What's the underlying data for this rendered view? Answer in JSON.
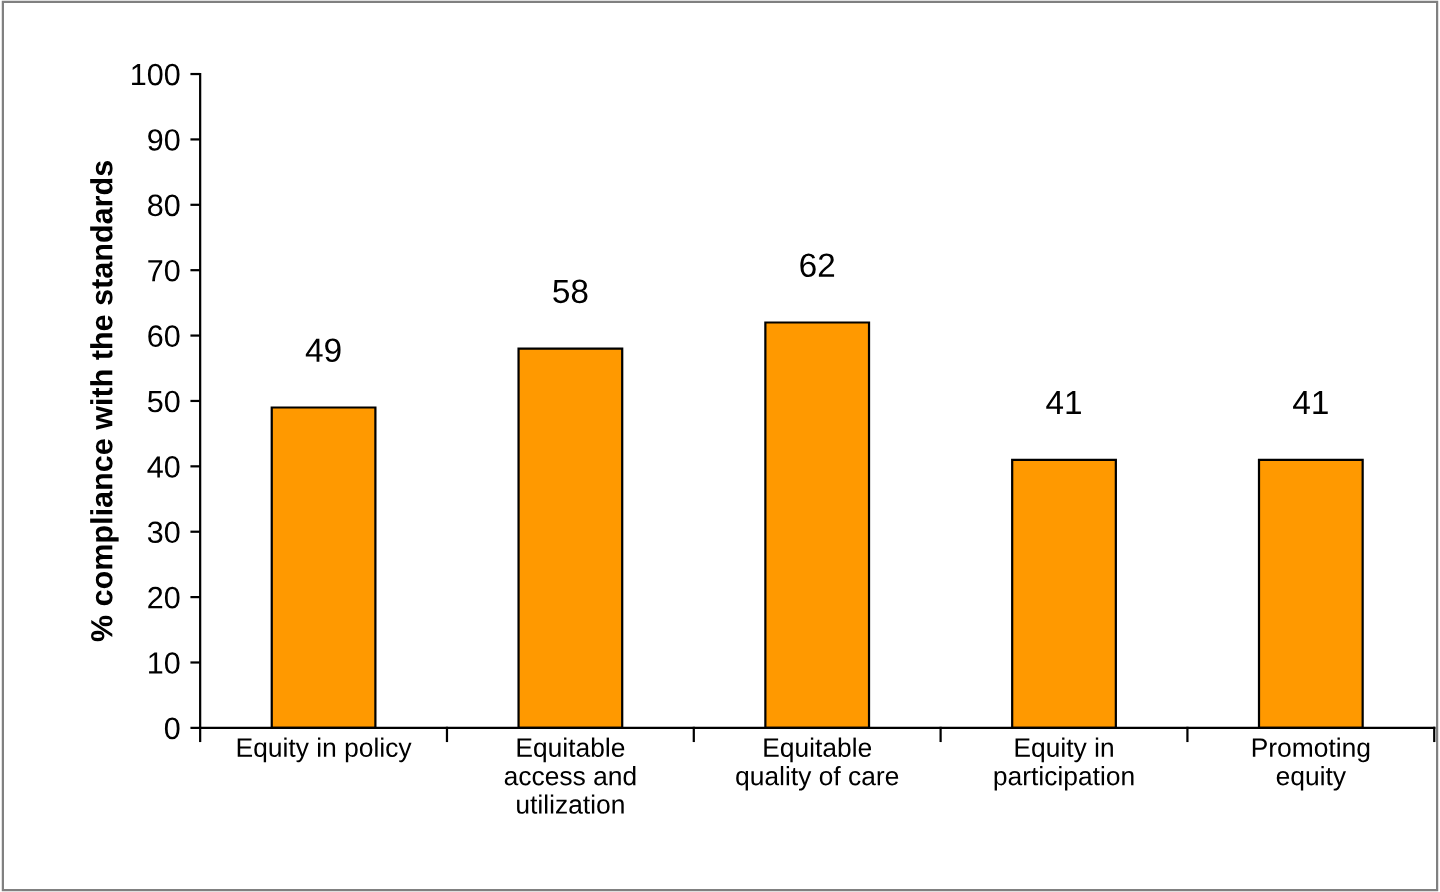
{
  "chart_data": {
    "type": "bar",
    "ylabel": "% compliance with the standards",
    "categories": [
      "Equity in policy",
      "Equitable\naccess and\nutilization",
      "Equitable\nquality of care",
      "Equity in\nparticipation",
      "Promoting\nequity"
    ],
    "values": [
      49,
      58,
      62,
      41,
      41
    ],
    "color": "#ff9900",
    "ylim": [
      0,
      100
    ],
    "yticks": [
      0,
      10,
      20,
      30,
      40,
      50,
      60,
      70,
      80,
      90,
      100
    ],
    "data_labels": true,
    "grid": false
  }
}
